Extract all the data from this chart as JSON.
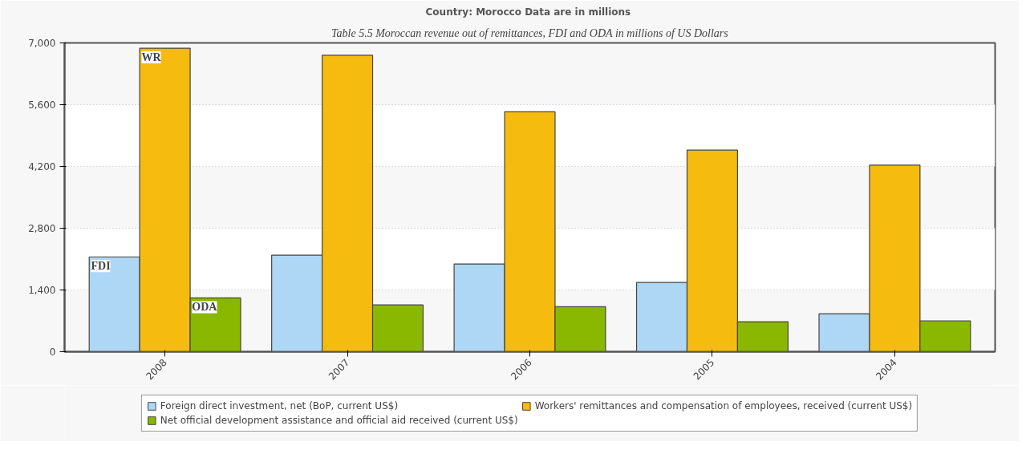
{
  "chart_data": {
    "type": "bar",
    "title": "Country: Morocco  Data are in millions",
    "categories": [
      "2008",
      "2007",
      "2006",
      "2005",
      "2004"
    ],
    "series": [
      {
        "name": "Foreign direct investment, net (BoP, current US$)",
        "color": "#aed6f5",
        "values": [
          2150,
          2190,
          1990,
          1570,
          860
        ]
      },
      {
        "name": "Workers' remittances and compensation of employees, received (current US$)",
        "color": "#f5bc0f",
        "values": [
          6880,
          6720,
          5440,
          4570,
          4230
        ]
      },
      {
        "name": "Net official development assistance and official aid received (current US$)",
        "color": "#8ab800",
        "values": [
          1220,
          1060,
          1020,
          680,
          700
        ]
      }
    ],
    "ylim": [
      0,
      7000
    ],
    "yticks": [
      0,
      {
        "value": 1400,
        "label": "1,400"
      },
      {
        "value": 2800,
        "label": "2,800"
      },
      {
        "value": 4200,
        "label": "4,200"
      },
      {
        "value": 5600,
        "label": "5,600"
      },
      {
        "value": 7000,
        "label": "7,000"
      }
    ],
    "grid": "y",
    "legend": "bottom",
    "annotations": [
      "Table 5.5 Moroccan revenue out of remittances, FDI and ODA in millions of US Dollars",
      {
        "text": "WR",
        "x": "2008",
        "y": 6880
      },
      "FDI",
      "ODA"
    ]
  }
}
